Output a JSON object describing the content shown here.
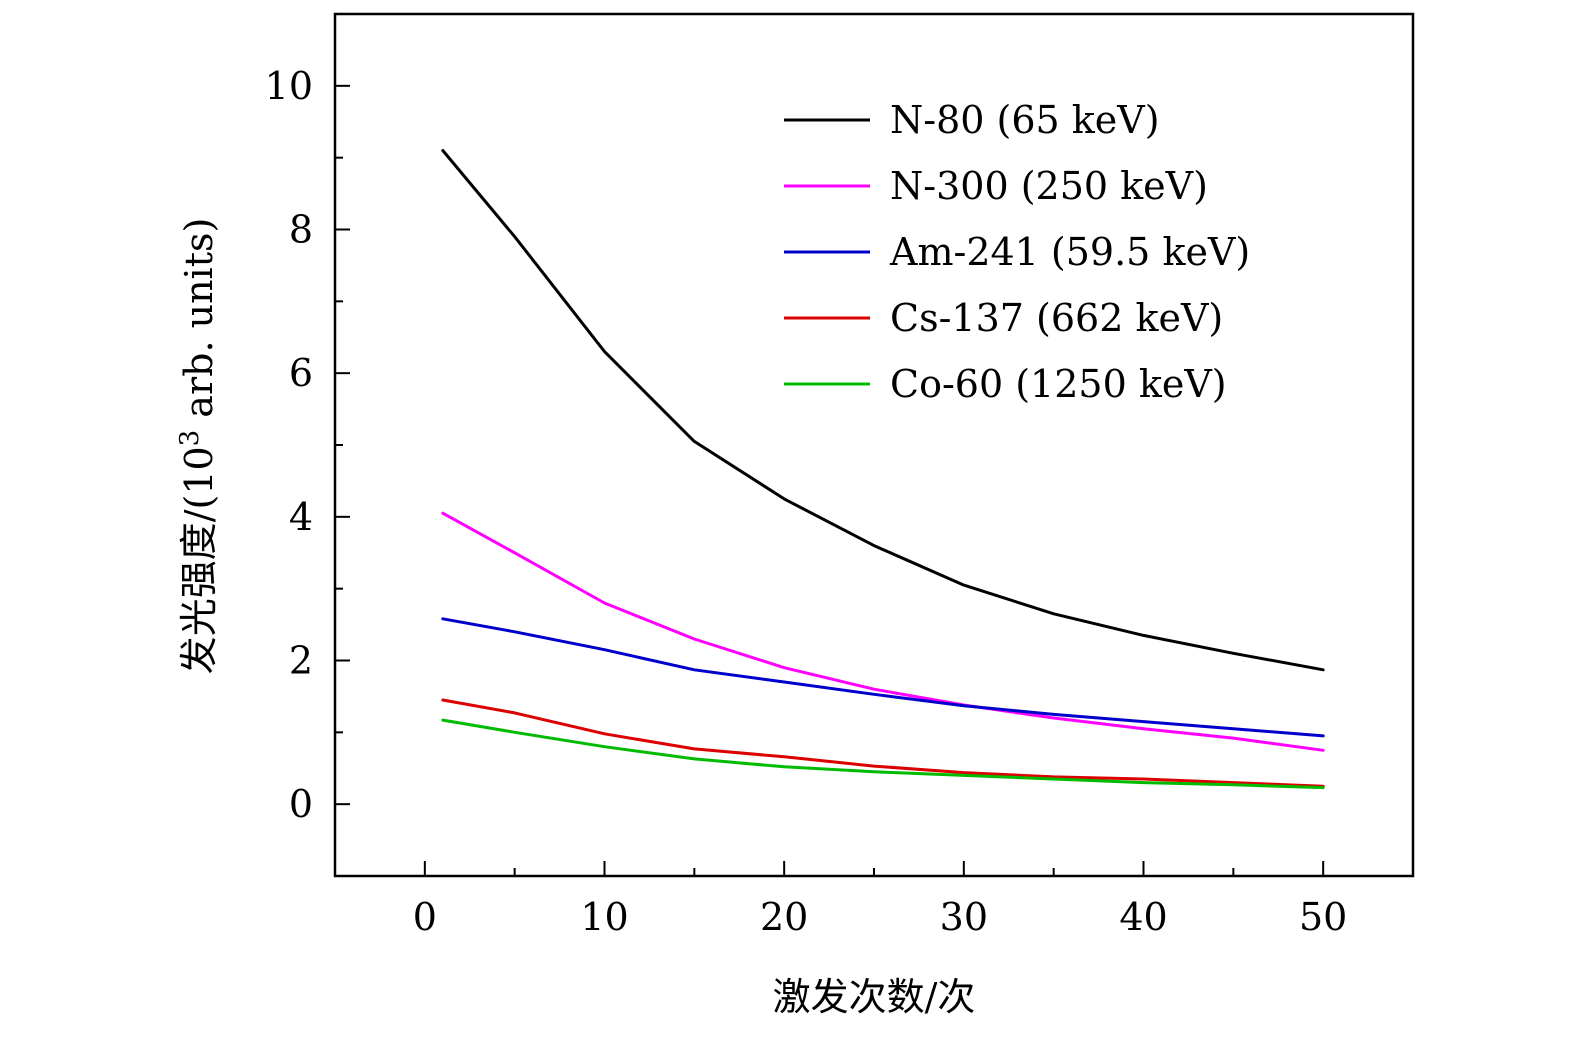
{
  "chart_data": {
    "type": "line",
    "title": "",
    "xlabel": "激发次数/次",
    "ylabel_main": "发光强度/(10",
    "ylabel_exp": "3",
    "ylabel_tail": " arb. units)",
    "xlim": [
      -5,
      55
    ],
    "ylim": [
      -1,
      11
    ],
    "xticks": [
      0,
      10,
      20,
      30,
      40,
      50
    ],
    "xtick_labels": [
      "0",
      "10",
      "20",
      "30",
      "40",
      "50"
    ],
    "yticks": [
      0,
      2,
      4,
      6,
      8,
      10
    ],
    "ytick_labels": [
      "0",
      "2",
      "4",
      "6",
      "8",
      "10"
    ],
    "grid": false,
    "legend_position": "top-right",
    "x": [
      1,
      5,
      10,
      15,
      20,
      25,
      30,
      35,
      40,
      45,
      50
    ],
    "series": [
      {
        "name": "N-80 (65 keV)",
        "color": "#000000",
        "values": [
          9.1,
          7.9,
          6.3,
          5.05,
          4.25,
          3.6,
          3.05,
          2.65,
          2.35,
          2.1,
          1.87
        ]
      },
      {
        "name": "N-300 (250 keV)",
        "color": "#ff00ff",
        "values": [
          4.05,
          3.5,
          2.8,
          2.3,
          1.9,
          1.6,
          1.38,
          1.2,
          1.05,
          0.92,
          0.75
        ]
      },
      {
        "name": "Am-241 (59.5 keV)",
        "color": "#0000cc",
        "values": [
          2.58,
          2.4,
          2.15,
          1.87,
          1.7,
          1.53,
          1.37,
          1.25,
          1.15,
          1.05,
          0.95
        ]
      },
      {
        "name": "Cs-137 (662 keV)",
        "color": "#dd0000",
        "values": [
          1.45,
          1.27,
          0.98,
          0.77,
          0.66,
          0.53,
          0.44,
          0.38,
          0.35,
          0.3,
          0.25
        ]
      },
      {
        "name": "Co-60 (1250 keV)",
        "color": "#00bb00",
        "values": [
          1.17,
          1.0,
          0.8,
          0.63,
          0.52,
          0.45,
          0.4,
          0.35,
          0.3,
          0.27,
          0.23
        ]
      }
    ]
  }
}
